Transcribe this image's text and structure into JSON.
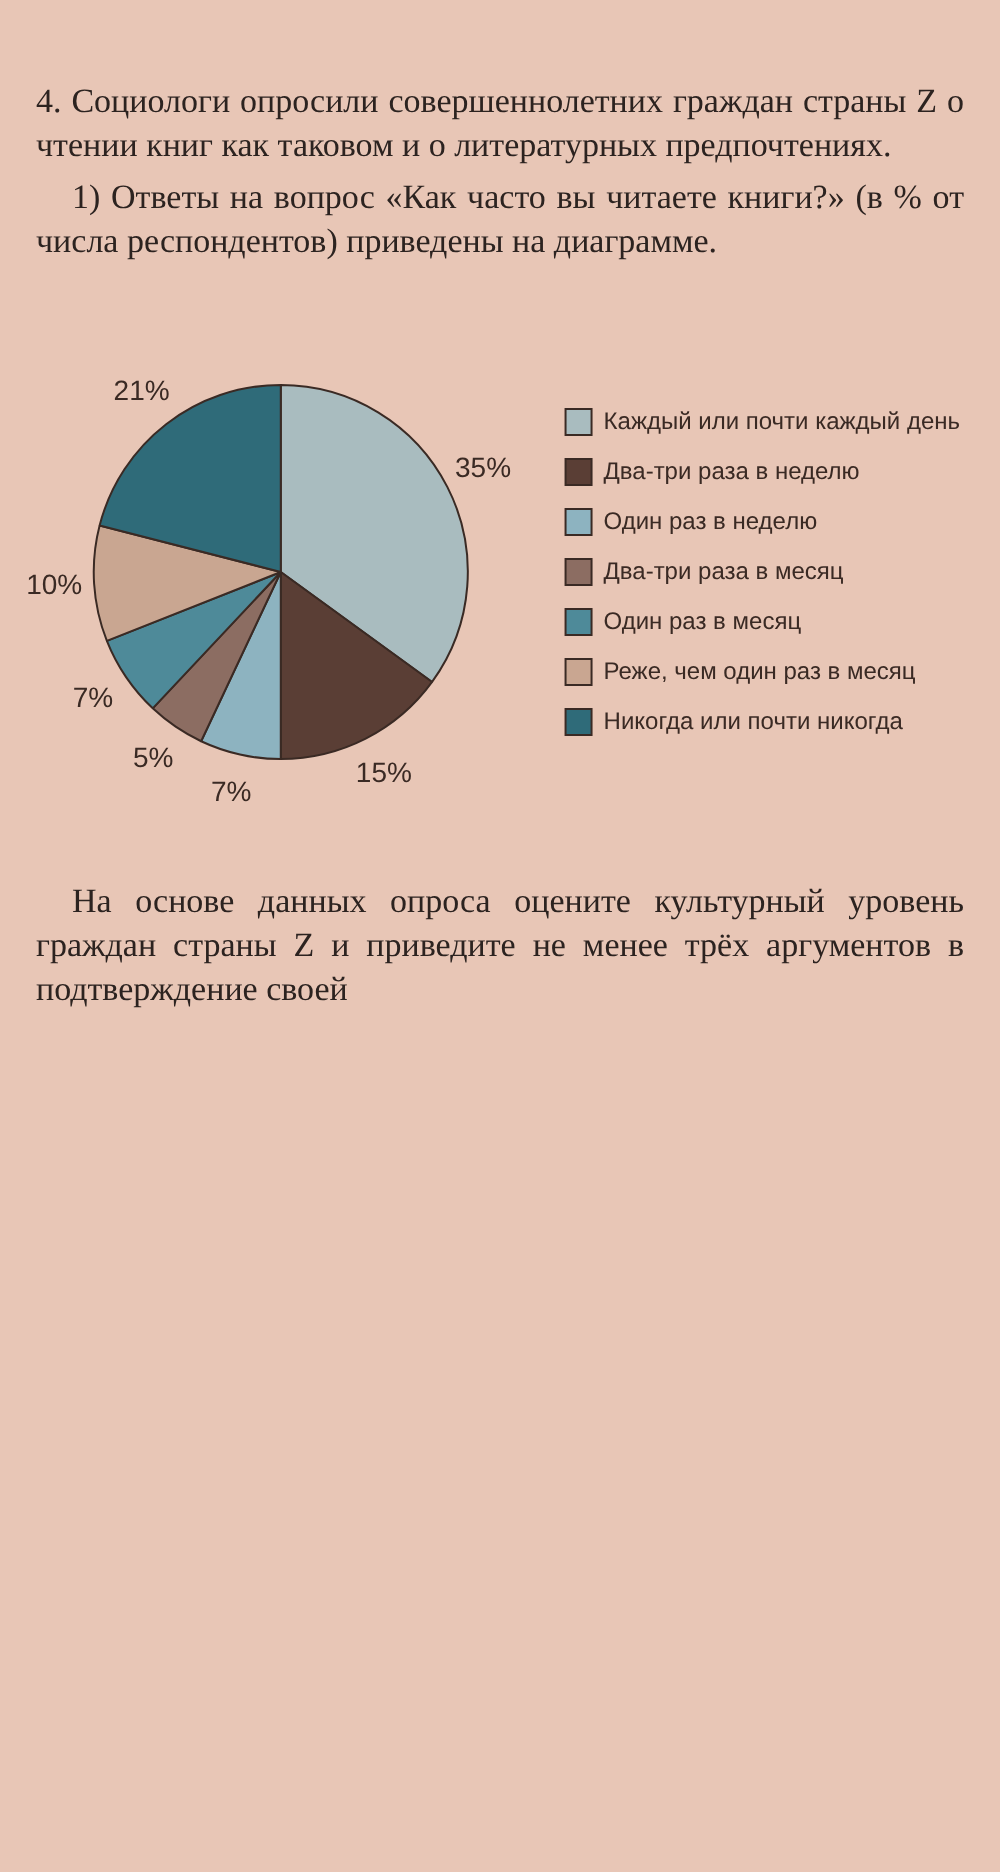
{
  "chart_data": {
    "type": "pie",
    "title": "4. Социологи опросили совершеннолетних граждан страны Z о чтении книг как таковом и о литературных предпочтениях.",
    "subtitle": "1) Ответы на вопрос «Как часто вы читаете книги?» (в % от числа респондентов) приведены на диаграмме.",
    "categories": [
      "Каждый или почти каждый день",
      "Два-три раза в неделю",
      "Один раз в неделю",
      "Два-три раза в месяц",
      "Один раз в месяц",
      "Реже, чем один раз в месяц",
      "Никогда или почти никогда"
    ],
    "values": [
      35,
      15,
      7,
      5,
      7,
      10,
      21
    ],
    "value_labels": [
      "35%",
      "15%",
      "7%",
      "5%",
      "7%",
      "10%",
      "21%"
    ],
    "colors": [
      "#a9bcbf",
      "#5a3e35",
      "#8db3c0",
      "#8c6d62",
      "#4e8a99",
      "#c9a691",
      "#2f6b79"
    ],
    "legend": "right",
    "annotations": [
      "На основе данных опроса оцените культурный уровень граждан страны Z и приведите не менее трёх аргументов в подтверждение своей"
    ]
  }
}
